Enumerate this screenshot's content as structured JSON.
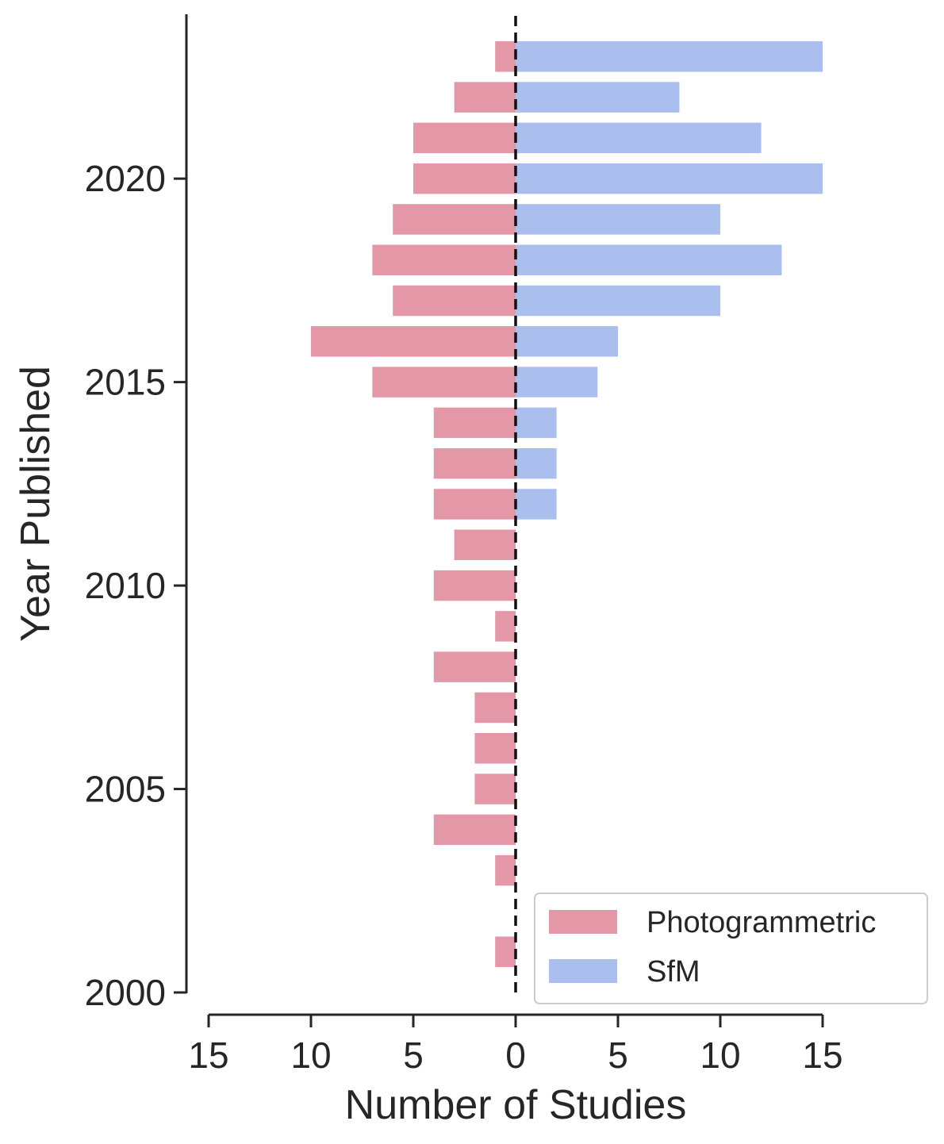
{
  "chart_data": {
    "type": "bar",
    "orientation": "horizontal-diverging",
    "xlabel": "Number of Studies",
    "ylabel": "Year Published",
    "x_ticks": [
      15,
      10,
      5,
      0,
      5,
      10,
      15
    ],
    "y_ticks": [
      2000,
      2005,
      2010,
      2015,
      2020
    ],
    "xlim": [
      -15,
      15
    ],
    "ylim": [
      2000,
      2024
    ],
    "years": [
      2001,
      2002,
      2003,
      2004,
      2005,
      2006,
      2007,
      2008,
      2009,
      2010,
      2011,
      2012,
      2013,
      2014,
      2015,
      2016,
      2017,
      2018,
      2019,
      2020,
      2021,
      2022,
      2023
    ],
    "series": [
      {
        "name": "Photogrammetric",
        "color": "#e497a7",
        "side": "left",
        "values": [
          1,
          0,
          1,
          4,
          2,
          2,
          2,
          4,
          1,
          4,
          3,
          4,
          4,
          4,
          7,
          10,
          6,
          7,
          6,
          5,
          5,
          3,
          1
        ]
      },
      {
        "name": "SfM",
        "color": "#aabfee",
        "side": "right",
        "values": [
          0,
          0,
          0,
          0,
          0,
          0,
          0,
          0,
          0,
          0,
          0,
          2,
          2,
          2,
          4,
          5,
          10,
          13,
          10,
          15,
          12,
          8,
          15
        ]
      }
    ],
    "zero_line": {
      "style": "dashed",
      "color": "#111111"
    },
    "legend": {
      "position": "bottom-right"
    },
    "grid": false
  }
}
